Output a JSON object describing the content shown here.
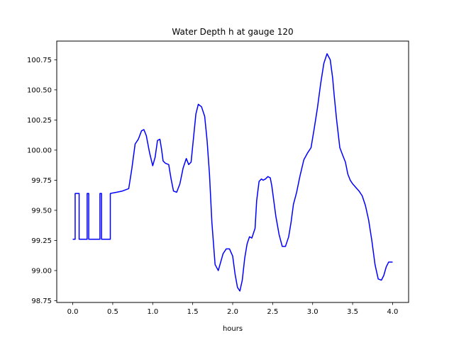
{
  "chart_data": {
    "type": "line",
    "title": "Water Depth h at gauge 120",
    "xlabel": "hours",
    "ylabel": "",
    "xlim": [
      -0.2,
      4.2
    ],
    "ylim": [
      98.735,
      100.905
    ],
    "xticks": [
      0.0,
      0.5,
      1.0,
      1.5,
      2.0,
      2.5,
      3.0,
      3.5,
      4.0
    ],
    "xtick_labels": [
      "0.0",
      "0.5",
      "1.0",
      "1.5",
      "2.0",
      "2.5",
      "3.0",
      "3.5",
      "4.0"
    ],
    "yticks": [
      98.75,
      99.0,
      99.25,
      99.5,
      99.75,
      100.0,
      100.25,
      100.5,
      100.75
    ],
    "ytick_labels": [
      "98.75",
      "99.00",
      "99.25",
      "99.50",
      "99.75",
      "100.00",
      "100.25",
      "100.50",
      "100.75"
    ],
    "grid": false,
    "series": [
      {
        "color": "#0000ff",
        "x": [
          0.0,
          0.03,
          0.03,
          0.08,
          0.08,
          0.18,
          0.18,
          0.2,
          0.2,
          0.34,
          0.34,
          0.36,
          0.36,
          0.47,
          0.47,
          0.55,
          0.62,
          0.7,
          0.74,
          0.78,
          0.82,
          0.86,
          0.89,
          0.92,
          0.96,
          1.0,
          1.03,
          1.06,
          1.09,
          1.11,
          1.13,
          1.16,
          1.2,
          1.23,
          1.26,
          1.3,
          1.34,
          1.38,
          1.42,
          1.45,
          1.48,
          1.51,
          1.54,
          1.57,
          1.61,
          1.65,
          1.68,
          1.71,
          1.74,
          1.78,
          1.82,
          1.85,
          1.88,
          1.92,
          1.96,
          2.0,
          2.03,
          2.06,
          2.09,
          2.12,
          2.15,
          2.18,
          2.21,
          2.24,
          2.28,
          2.3,
          2.33,
          2.36,
          2.38,
          2.41,
          2.44,
          2.47,
          2.49,
          2.51,
          2.54,
          2.58,
          2.62,
          2.66,
          2.7,
          2.73,
          2.76,
          2.8,
          2.84,
          2.89,
          2.94,
          2.98,
          3.02,
          3.06,
          3.1,
          3.14,
          3.18,
          3.22,
          3.25,
          3.27,
          3.3,
          3.34,
          3.38,
          3.41,
          3.44,
          3.47,
          3.5,
          3.54,
          3.58,
          3.62,
          3.66,
          3.7,
          3.74,
          3.78,
          3.82,
          3.86,
          3.89,
          3.92,
          3.95,
          3.98,
          4.0
        ],
        "y": [
          99.26,
          99.26,
          99.64,
          99.64,
          99.26,
          99.26,
          99.64,
          99.64,
          99.26,
          99.26,
          99.64,
          99.64,
          99.26,
          99.26,
          99.64,
          99.65,
          99.66,
          99.68,
          99.85,
          100.05,
          100.09,
          100.16,
          100.17,
          100.12,
          99.98,
          99.87,
          99.94,
          100.08,
          100.09,
          100.01,
          99.91,
          99.89,
          99.88,
          99.76,
          99.66,
          99.65,
          99.72,
          99.85,
          99.93,
          99.88,
          99.9,
          100.1,
          100.3,
          100.38,
          100.36,
          100.28,
          100.08,
          99.8,
          99.4,
          99.05,
          99.0,
          99.07,
          99.14,
          99.18,
          99.18,
          99.12,
          98.97,
          98.86,
          98.83,
          98.92,
          99.1,
          99.22,
          99.28,
          99.27,
          99.35,
          99.58,
          99.74,
          99.76,
          99.75,
          99.76,
          99.78,
          99.77,
          99.7,
          99.6,
          99.45,
          99.3,
          99.2,
          99.2,
          99.28,
          99.4,
          99.55,
          99.65,
          99.78,
          99.92,
          99.98,
          100.02,
          100.18,
          100.35,
          100.55,
          100.72,
          100.8,
          100.75,
          100.6,
          100.45,
          100.25,
          100.02,
          99.95,
          99.9,
          99.8,
          99.75,
          99.72,
          99.69,
          99.66,
          99.62,
          99.54,
          99.42,
          99.25,
          99.05,
          98.93,
          98.92,
          98.96,
          99.03,
          99.07,
          99.07,
          99.07
        ]
      }
    ]
  }
}
